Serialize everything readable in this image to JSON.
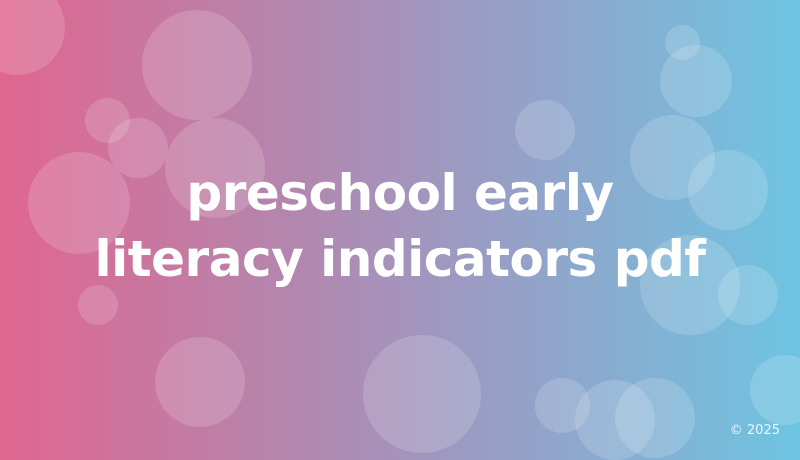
{
  "title_lines": [
    "preschool early",
    "literacy indicators pdf"
  ],
  "copyright": "© 2025",
  "colors": {
    "gradient_left": "#e0668f",
    "gradient_right": "#6ec4e2",
    "text": "#ffffff"
  }
}
